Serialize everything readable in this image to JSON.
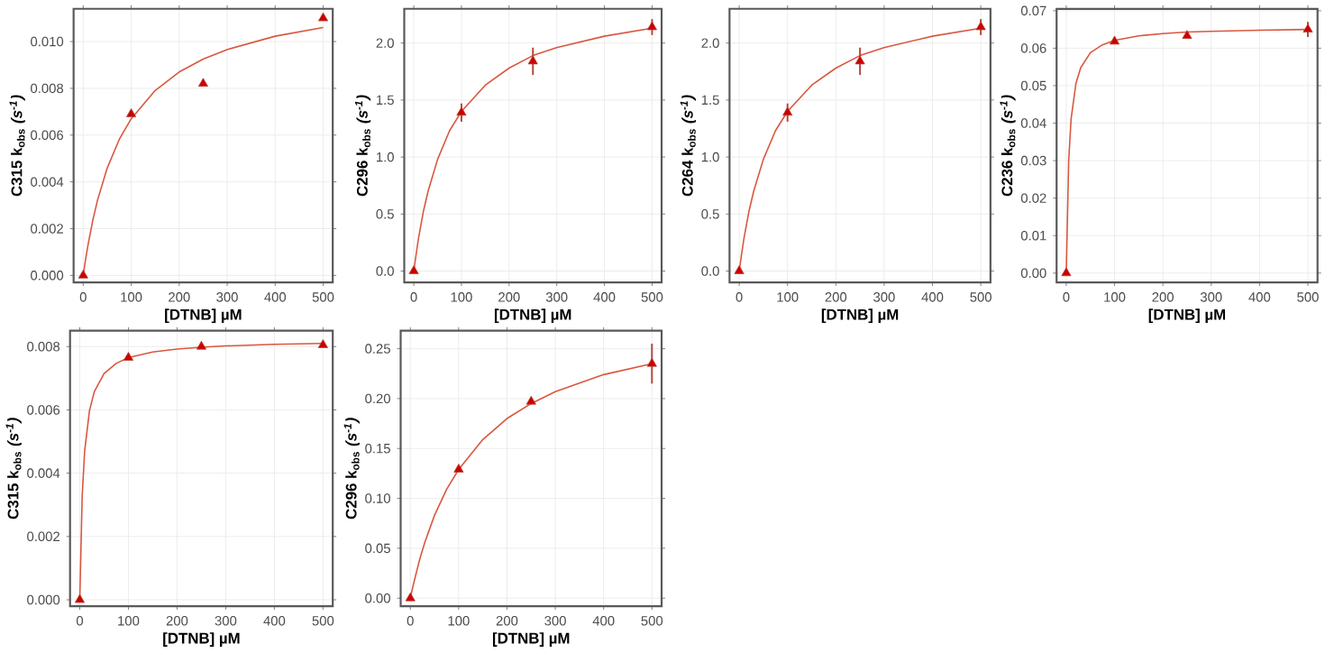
{
  "chart_data": [
    {
      "type": "scatter",
      "xlabel": "[DTNB] µM",
      "ylabel": "**C315 k$_{obs}$** *(s$^{-1}$)*",
      "grid": true,
      "x": [
        0,
        100,
        250,
        500
      ],
      "xlim": [
        -20,
        520
      ],
      "xticks": [
        0,
        100,
        200,
        300,
        400,
        500
      ],
      "ylim": [
        -0.0003,
        0.0114
      ],
      "yticks": [
        {
          "value": 0,
          "label": "0.000"
        },
        {
          "value": 0.002,
          "label": "0.002"
        },
        {
          "value": 0.004,
          "label": "0.004"
        },
        {
          "value": 0.006,
          "label": "0.006"
        },
        {
          "value": 0.008,
          "label": "0.008"
        },
        {
          "value": 0.01,
          "label": "0.010"
        }
      ],
      "series": [
        {
          "marker": "triangle",
          "color": "#b5473a",
          "values": [
            0,
            0.0069,
            0.0082,
            0.011
          ]
        },
        {
          "type": "line",
          "marker": "none",
          "color": "#d9573f",
          "x": [
            0,
            5,
            10,
            20,
            30,
            50,
            75,
            100,
            150,
            200,
            250,
            300,
            400,
            500
          ],
          "values": [
            0,
            0.00069,
            0.0013,
            0.00236,
            0.00323,
            0.00459,
            0.00581,
            0.0067,
            0.00791,
            0.0087,
            0.00925,
            0.00966,
            0.01023,
            0.0106
          ]
        }
      ]
    },
    {
      "type": "scatter",
      "xlabel": "[DTNB] µM",
      "ylabel": "**C296 k$_{obs}$** *(s$^{-1}$)*",
      "grid": true,
      "x": [
        0,
        100,
        250,
        500
      ],
      "xlim": [
        -20,
        520
      ],
      "xticks": [
        0,
        100,
        200,
        300,
        400,
        500
      ],
      "ylim": [
        -0.1,
        2.3
      ],
      "yticks": [
        {
          "value": 0,
          "label": "0.0"
        },
        {
          "value": 0.5,
          "label": "0.5"
        },
        {
          "value": 1,
          "label": "1.0"
        },
        {
          "value": 1.5,
          "label": "1.5"
        },
        {
          "value": 2,
          "label": "2.0"
        }
      ],
      "series": [
        {
          "marker": "triangle",
          "color": "#b5473a",
          "values": [
            0,
            1.39,
            1.84,
            2.14
          ],
          "errors": [
            null,
            0.08,
            0.12,
            0.07
          ]
        },
        {
          "type": "line",
          "marker": "none",
          "color": "#d9573f",
          "x": [
            0,
            5,
            10,
            20,
            30,
            50,
            75,
            100,
            150,
            200,
            250,
            300,
            400,
            500
          ],
          "values": [
            0,
            0.15,
            0.29,
            0.52,
            0.7,
            0.98,
            1.23,
            1.4,
            1.63,
            1.78,
            1.89,
            1.96,
            2.06,
            2.13
          ]
        }
      ]
    },
    {
      "type": "scatter",
      "xlabel": "[DTNB] µM",
      "ylabel": "**C264 k$_{obs}$** *(s$^{-1}$)*",
      "grid": true,
      "x": [
        0,
        100,
        250,
        500
      ],
      "xlim": [
        -20,
        520
      ],
      "xticks": [
        0,
        100,
        200,
        300,
        400,
        500
      ],
      "ylim": [
        -0.1,
        2.3
      ],
      "yticks": [
        {
          "value": 0,
          "label": "0.0"
        },
        {
          "value": 0.5,
          "label": "0.5"
        },
        {
          "value": 1,
          "label": "1.0"
        },
        {
          "value": 1.5,
          "label": "1.5"
        },
        {
          "value": 2,
          "label": "2.0"
        }
      ],
      "series": [
        {
          "marker": "triangle",
          "color": "#b5473a",
          "values": [
            0,
            1.39,
            1.84,
            2.14
          ],
          "errors": [
            null,
            0.08,
            0.12,
            0.07
          ]
        },
        {
          "type": "line",
          "marker": "none",
          "color": "#d9573f",
          "x": [
            0,
            5,
            10,
            20,
            30,
            50,
            75,
            100,
            150,
            200,
            250,
            300,
            400,
            500
          ],
          "values": [
            0,
            0.15,
            0.29,
            0.52,
            0.7,
            0.98,
            1.23,
            1.4,
            1.63,
            1.78,
            1.89,
            1.96,
            2.06,
            2.13
          ]
        }
      ]
    },
    {
      "type": "scatter",
      "xlabel": "[DTNB] µM",
      "ylabel": "**C236 k$_{obs}$** *(s$^{-1}$)*",
      "grid": true,
      "x": [
        0,
        100,
        250,
        500
      ],
      "xlim": [
        -20,
        520
      ],
      "xticks": [
        0,
        100,
        200,
        300,
        400,
        500
      ],
      "ylim": [
        -0.0025,
        0.0705
      ],
      "yticks": [
        {
          "value": 0,
          "label": "0.00"
        },
        {
          "value": 0.01,
          "label": "0.01"
        },
        {
          "value": 0.02,
          "label": "0.02"
        },
        {
          "value": 0.03,
          "label": "0.03"
        },
        {
          "value": 0.04,
          "label": "0.04"
        },
        {
          "value": 0.05,
          "label": "0.05"
        },
        {
          "value": 0.06,
          "label": "0.06"
        },
        {
          "value": 0.07,
          "label": "0.07"
        }
      ],
      "series": [
        {
          "marker": "triangle",
          "color": "#b5473a",
          "values": [
            0,
            0.0618,
            0.0633,
            0.065
          ],
          "errors": [
            null,
            null,
            null,
            0.002
          ]
        },
        {
          "type": "line",
          "marker": "none",
          "color": "#d9573f",
          "x": [
            0,
            5,
            10,
            20,
            30,
            50,
            75,
            100,
            150,
            200,
            250,
            300,
            400,
            500
          ],
          "values": [
            0,
            0.0299,
            0.0411,
            0.0506,
            0.0548,
            0.0588,
            0.0609,
            0.0621,
            0.0633,
            0.0639,
            0.0643,
            0.0645,
            0.0648,
            0.065
          ]
        }
      ]
    },
    {
      "type": "scatter",
      "xlabel": "[DTNB] µM",
      "ylabel": "**C315 k$_{obs}$** *(s$^{-1}$)*",
      "grid": true,
      "x": [
        0,
        100,
        250,
        500
      ],
      "xlim": [
        -20,
        520
      ],
      "xticks": [
        0,
        100,
        200,
        300,
        400,
        500
      ],
      "ylim": [
        -0.0002,
        0.0085
      ],
      "yticks": [
        {
          "value": 0,
          "label": "0.000"
        },
        {
          "value": 0.002,
          "label": "0.002"
        },
        {
          "value": 0.004,
          "label": "0.004"
        },
        {
          "value": 0.006,
          "label": "0.006"
        },
        {
          "value": 0.008,
          "label": "0.008"
        }
      ],
      "series": [
        {
          "marker": "triangle",
          "color": "#b5473a",
          "values": [
            0,
            0.00765,
            0.008,
            0.00805
          ]
        },
        {
          "type": "line",
          "marker": "none",
          "color": "#d9573f",
          "x": [
            0,
            5,
            10,
            20,
            30,
            50,
            75,
            100,
            150,
            200,
            250,
            300,
            400,
            500
          ],
          "values": [
            0,
            0.00329,
            0.0047,
            0.00598,
            0.00658,
            0.00715,
            0.00747,
            0.00765,
            0.00783,
            0.00792,
            0.00798,
            0.00802,
            0.00807,
            0.0081
          ]
        }
      ]
    },
    {
      "type": "scatter",
      "xlabel": "[DTNB] µM",
      "ylabel": "**C296 k$_{obs}$** *(s$^{-1}$)*",
      "grid": true,
      "x": [
        0,
        100,
        250,
        500
      ],
      "xlim": [
        -20,
        520
      ],
      "xticks": [
        0,
        100,
        200,
        300,
        400,
        500
      ],
      "ylim": [
        -0.008,
        0.268
      ],
      "yticks": [
        {
          "value": 0,
          "label": "0.00"
        },
        {
          "value": 0.05,
          "label": "0.05"
        },
        {
          "value": 0.1,
          "label": "0.10"
        },
        {
          "value": 0.15,
          "label": "0.15"
        },
        {
          "value": 0.2,
          "label": "0.20"
        },
        {
          "value": 0.25,
          "label": "0.25"
        }
      ],
      "series": [
        {
          "marker": "triangle",
          "color": "#b5473a",
          "values": [
            0,
            0.129,
            0.197,
            0.235
          ],
          "errors": [
            null,
            null,
            null,
            0.02
          ]
        },
        {
          "type": "line",
          "marker": "none",
          "color": "#d9573f",
          "x": [
            0,
            5,
            10,
            20,
            30,
            50,
            75,
            100,
            150,
            200,
            250,
            300,
            400,
            500
          ],
          "values": [
            0,
            0.011,
            0.021,
            0.04,
            0.056,
            0.083,
            0.109,
            0.129,
            0.159,
            0.18,
            0.195,
            0.207,
            0.224,
            0.235
          ]
        }
      ]
    }
  ]
}
